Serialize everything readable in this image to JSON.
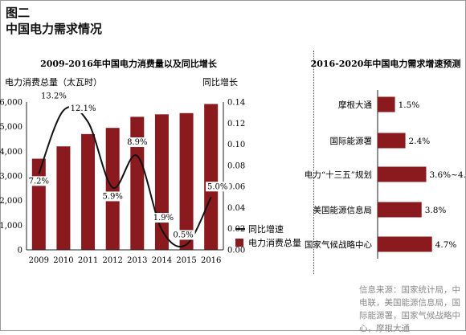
{
  "figure": {
    "label": "图二",
    "title": "中国电力需求情况",
    "source": "信息来源：国家统计局，中电联，美国能源信息局，国际能源署，国家气候战略中心，摩根大通"
  },
  "colors": {
    "bar": "#8b1a1f",
    "line": "#111111",
    "text": "#111111"
  },
  "chart_data": [
    {
      "type": "bar+line",
      "title": "2009-2016年中国电力消费量以及同比增长",
      "y_left_label": "电力消费总量（太瓦时）",
      "y_right_label": "同比增长",
      "categories": [
        "2009",
        "2010",
        "2011",
        "2012",
        "2013",
        "2014",
        "2015",
        "2016"
      ],
      "ylim_left": [
        0,
        6000
      ],
      "ylim_right": [
        0,
        0.14
      ],
      "y_left_ticks": [
        "0",
        "1,000",
        "2,000",
        "3,000",
        "4,000",
        "5,000",
        "6,000"
      ],
      "y_right_ticks": [
        "0.00",
        "0.02",
        "0.04",
        "0.06",
        "0.08",
        "0.10",
        "0.12",
        "0.14"
      ],
      "series": [
        {
          "name": "电力消费总量",
          "kind": "bar",
          "values": [
            3700,
            4200,
            4700,
            4950,
            5400,
            5500,
            5550,
            5920
          ]
        },
        {
          "name": "同比增长",
          "kind": "line",
          "values": [
            0.072,
            0.132,
            0.121,
            0.059,
            0.089,
            0.019,
            0.005,
            0.05
          ],
          "labels": [
            "7.2%",
            "13.2%",
            "12.1%",
            "5.9%",
            "8.9%",
            "1.9%",
            "0.5%",
            "5.0%"
          ]
        }
      ],
      "legend": [
        "同比增速",
        "电力消费总量"
      ],
      "legend_position": "bottom-right"
    },
    {
      "type": "horizontal-bar",
      "title": "2016-2020年中国电力需求增速预测",
      "categories": [
        "摩根大通",
        "国际能源署",
        "电力“十三五”规划",
        "美国能源信息局",
        "国家气候战略中心"
      ],
      "values": [
        0.015,
        0.024,
        0.042,
        0.038,
        0.047
      ],
      "labels": [
        "1.5%",
        "2.4%",
        "3.6%~4.8%",
        "3.8%",
        "4.7%"
      ]
    }
  ]
}
